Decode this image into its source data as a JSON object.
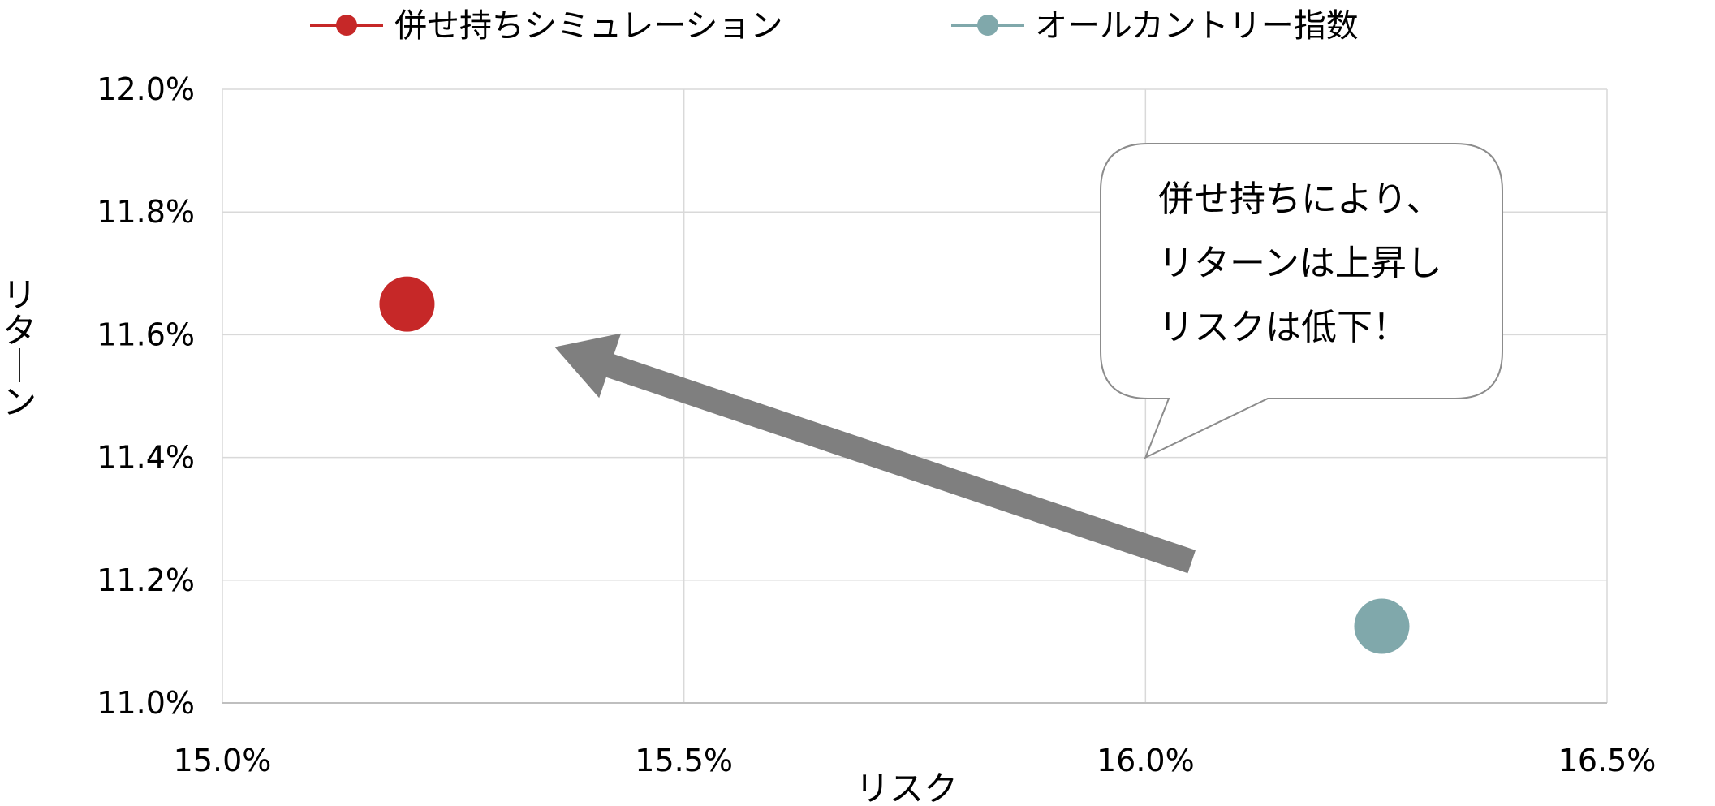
{
  "chart_data": {
    "type": "scatter",
    "title": "",
    "xlabel": "リスク",
    "ylabel": "リターン",
    "xlim": [
      15.0,
      16.5
    ],
    "ylim": [
      11.0,
      12.0
    ],
    "x_ticks": [
      15.0,
      15.5,
      16.0,
      16.5
    ],
    "y_ticks": [
      11.0,
      11.2,
      11.4,
      11.6,
      11.8,
      12.0
    ],
    "x_tick_labels": [
      "15.0%",
      "15.5%",
      "16.0%",
      "16.5%"
    ],
    "y_tick_labels": [
      "11.0%",
      "11.2%",
      "11.4%",
      "11.6%",
      "11.8%",
      "12.0%"
    ],
    "grid": true,
    "legend_position": "top",
    "series": [
      {
        "name": "併せ持ちシミュレーション",
        "color": "#c62828",
        "points": [
          {
            "x": 15.2,
            "y": 11.65
          }
        ]
      },
      {
        "name": "オールカントリー指数",
        "color": "#80a8ab",
        "points": [
          {
            "x": 16.256,
            "y": 11.125
          }
        ]
      }
    ],
    "annotations": {
      "arrow": {
        "color": "#7f7f7f",
        "from": {
          "x": 16.05,
          "y": 11.23
        },
        "to": {
          "x": 15.36,
          "y": 11.58
        }
      },
      "callout": {
        "lines": [
          "併せ持ちにより、",
          "リターンは上昇し",
          "リスクは低下！"
        ],
        "pointer": {
          "x": 16.0,
          "y": 11.4
        }
      }
    }
  }
}
